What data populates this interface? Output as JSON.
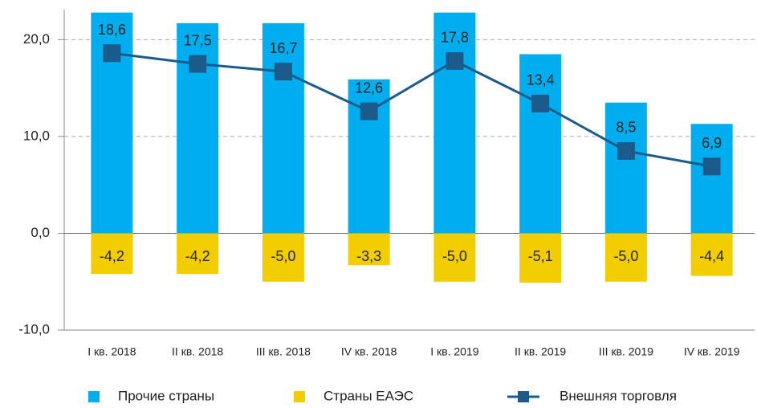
{
  "chart_data": {
    "type": "bar-line",
    "categories": [
      "I кв. 2018",
      "II кв. 2018",
      "III кв. 2018",
      "IV кв. 2018",
      "I кв. 2019",
      "II кв. 2019",
      "III кв. 2019",
      "IV кв. 2019"
    ],
    "series": [
      {
        "name": "Прочие страны",
        "type": "bar",
        "color": "#00aeef",
        "values": [
          22.8,
          21.7,
          21.7,
          15.9,
          22.8,
          18.5,
          13.5,
          11.3
        ]
      },
      {
        "name": "Страны ЕАЭС",
        "type": "bar",
        "color": "#f2cd00",
        "values": [
          -4.2,
          -4.2,
          -5.0,
          -3.3,
          -5.0,
          -5.1,
          -5.0,
          -4.4
        ],
        "value_labels": [
          "-4,2",
          "-4,2",
          "-5,0",
          "-3,3",
          "-5,0",
          "-5,1",
          "-5,0",
          "-4,4"
        ]
      },
      {
        "name": "Внешняя торговля",
        "type": "line",
        "color": "#1b5b8c",
        "values": [
          18.6,
          17.5,
          16.7,
          12.6,
          17.8,
          13.4,
          8.5,
          6.9
        ],
        "value_labels": [
          "18,6",
          "17,5",
          "16,7",
          "12,6",
          "17,8",
          "13,4",
          "8,5",
          "6,9"
        ]
      }
    ],
    "ylim": [
      -10,
      23.1
    ],
    "yticks": [
      {
        "value": -10,
        "label": "-10,0"
      },
      {
        "value": 0,
        "label": "0,0"
      },
      {
        "value": 10,
        "label": "10,0"
      },
      {
        "value": 20,
        "label": "20,0"
      }
    ],
    "grid": true,
    "legend": "bottom"
  }
}
